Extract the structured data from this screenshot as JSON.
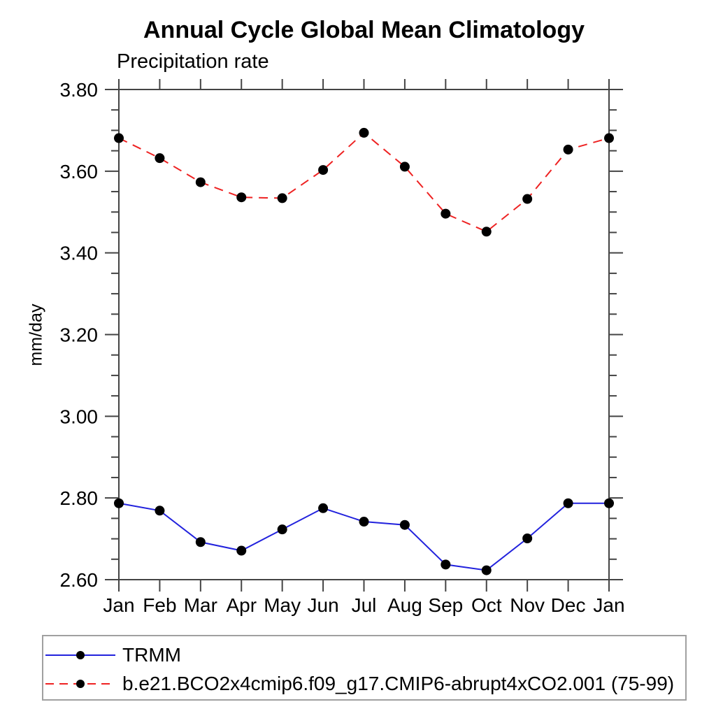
{
  "chart_data": {
    "type": "line",
    "title": "Annual Cycle Global Mean Climatology",
    "subtitle": "Precipitation rate",
    "ylabel": "mm/day",
    "categories": [
      "Jan",
      "Feb",
      "Mar",
      "Apr",
      "May",
      "Jun",
      "Jul",
      "Aug",
      "Sep",
      "Oct",
      "Nov",
      "Dec",
      "Jan"
    ],
    "series": [
      {
        "name": "TRMM",
        "color": "#2222dd",
        "line_style": "solid",
        "marker": "filled-circle",
        "marker_color": "#000000",
        "values": [
          2.787,
          2.769,
          2.692,
          2.671,
          2.723,
          2.775,
          2.742,
          2.734,
          2.637,
          2.623,
          2.701,
          2.787,
          2.787
        ]
      },
      {
        "name": "b.e21.BCO2x4cmip6.f09_g17.CMIP6-abrupt4xCO2.001 (75-99)",
        "color": "#ee2222",
        "line_style": "dashed",
        "marker": "filled-circle",
        "marker_color": "#000000",
        "values": [
          3.681,
          3.632,
          3.573,
          3.536,
          3.534,
          3.603,
          3.694,
          3.611,
          3.496,
          3.452,
          3.532,
          3.653,
          3.681
        ]
      }
    ],
    "ylim": [
      2.6,
      3.8
    ],
    "ytick_major_step": 0.2,
    "ytick_minor_step": 0.05,
    "ytick_labels": [
      "2.60",
      "2.80",
      "3.00",
      "3.20",
      "3.40",
      "3.60",
      "3.80"
    ],
    "grid": false,
    "legend_position": "bottom-left",
    "axis_color": "#444444"
  }
}
